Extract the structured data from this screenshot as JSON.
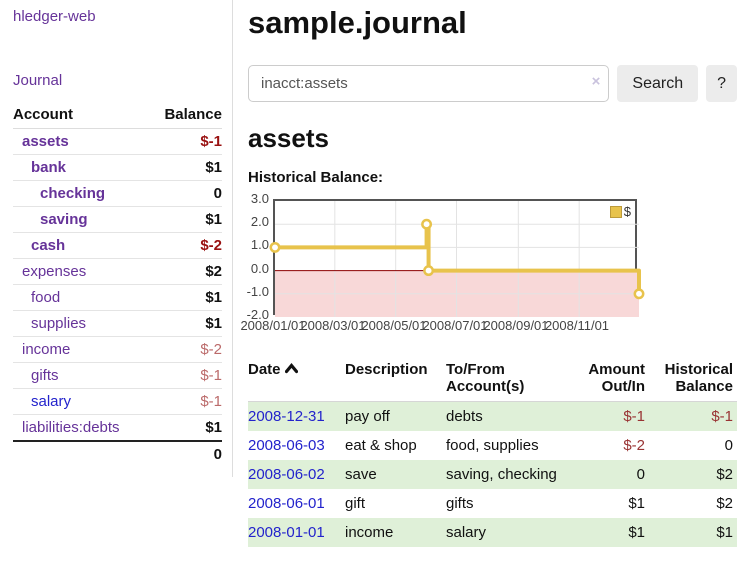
{
  "app": {
    "title": "hledger-web"
  },
  "sidebar": {
    "nav": {
      "journal": "Journal"
    },
    "accounts": {
      "header": {
        "account": "Account",
        "balance": "Balance"
      },
      "rows": [
        {
          "name": "assets",
          "balance": "$-1",
          "depth": 1,
          "emphasized": true,
          "balance_style": "negative-strong"
        },
        {
          "name": "bank",
          "balance": "$1",
          "depth": 2,
          "emphasized": true,
          "balance_style": "normal"
        },
        {
          "name": "checking",
          "balance": "0",
          "depth": 3,
          "emphasized": true,
          "balance_style": "normal"
        },
        {
          "name": "saving",
          "balance": "$1",
          "depth": 3,
          "emphasized": true,
          "balance_style": "normal"
        },
        {
          "name": "cash",
          "balance": "$-2",
          "depth": 2,
          "emphasized": true,
          "balance_style": "negative-strong"
        },
        {
          "name": "expenses",
          "balance": "$2",
          "depth": 1,
          "emphasized": false,
          "balance_style": "normal"
        },
        {
          "name": "food",
          "balance": "$1",
          "depth": 2,
          "emphasized": false,
          "balance_style": "normal"
        },
        {
          "name": "supplies",
          "balance": "$1",
          "depth": 2,
          "emphasized": false,
          "balance_style": "normal"
        },
        {
          "name": "income",
          "balance": "$-2",
          "depth": 1,
          "emphasized": false,
          "balance_style": "negative-soft"
        },
        {
          "name": "gifts",
          "balance": "$-1",
          "depth": 2,
          "emphasized": false,
          "balance_style": "negative-soft"
        },
        {
          "name": "salary",
          "balance": "$-1",
          "depth": 2,
          "emphasized": false,
          "balance_style": "negative-soft"
        },
        {
          "name": "liabilities:debts",
          "balance": "$1",
          "depth": 1,
          "emphasized": false,
          "balance_style": "normal"
        }
      ],
      "total": "0"
    }
  },
  "header": {
    "title": "sample.journal"
  },
  "search": {
    "value": "inacct:assets",
    "clear_icon": "×",
    "button": "Search",
    "help_button": "?"
  },
  "account_page": {
    "title": "assets",
    "chart_label": "Historical Balance:"
  },
  "chart_data": {
    "type": "line",
    "title": "Historical Balance:",
    "step": true,
    "series": [
      {
        "name": "$",
        "points": [
          [
            "2008-01-01",
            1
          ],
          [
            "2008-06-01",
            2
          ],
          [
            "2008-06-03",
            0
          ],
          [
            "2008-12-31",
            -1
          ]
        ]
      }
    ],
    "xlim": [
      "2008-01-01",
      "2008-12-31"
    ],
    "ylim": [
      -2,
      3
    ],
    "x_ticks": [
      "2008/01/01",
      "2008/03/01",
      "2008/05/01",
      "2008/07/01",
      "2008/09/01",
      "2008/11/01"
    ],
    "y_ticks": [
      3,
      2,
      1,
      0,
      -1,
      -2
    ],
    "y_tick_labels": [
      "3.0",
      "2.0",
      "1.0",
      "0.0",
      "-1.0",
      "-2.0"
    ],
    "legend": {
      "position": "top-right",
      "label": "$",
      "color": "#e8c34c"
    },
    "grid": true,
    "line_color": "#e8c34c",
    "negative_region_color": "#f8d8d8",
    "zero_line_color": "#8b0000"
  },
  "register": {
    "columns": [
      "Date",
      "Description",
      "To/From\nAccount(s)",
      "Amount\nOut/In",
      "Historical\nBalance"
    ],
    "sort": {
      "column": "Date",
      "direction": "ascending"
    },
    "rows": [
      {
        "date": "2008-12-31",
        "description": "pay off",
        "accounts": "debts",
        "amount": "$-1",
        "balance": "$-1"
      },
      {
        "date": "2008-06-03",
        "description": "eat & shop",
        "accounts": "food, supplies",
        "amount": "$-2",
        "balance": "0"
      },
      {
        "date": "2008-06-02",
        "description": "save",
        "accounts": "saving, checking",
        "amount": "0",
        "balance": "$2"
      },
      {
        "date": "2008-06-01",
        "description": "gift",
        "accounts": "gifts",
        "amount": "$1",
        "balance": "$2"
      },
      {
        "date": "2008-01-01",
        "description": "income",
        "accounts": "salary",
        "amount": "$1",
        "balance": "$1"
      }
    ]
  },
  "colors": {
    "link_purple": "#663399",
    "link_blue": "#2323cc",
    "negative_strong": "#991111",
    "negative_soft": "#bb6a6a",
    "table_negative": "#993333",
    "row_highlight_green": "#dff0d8"
  }
}
